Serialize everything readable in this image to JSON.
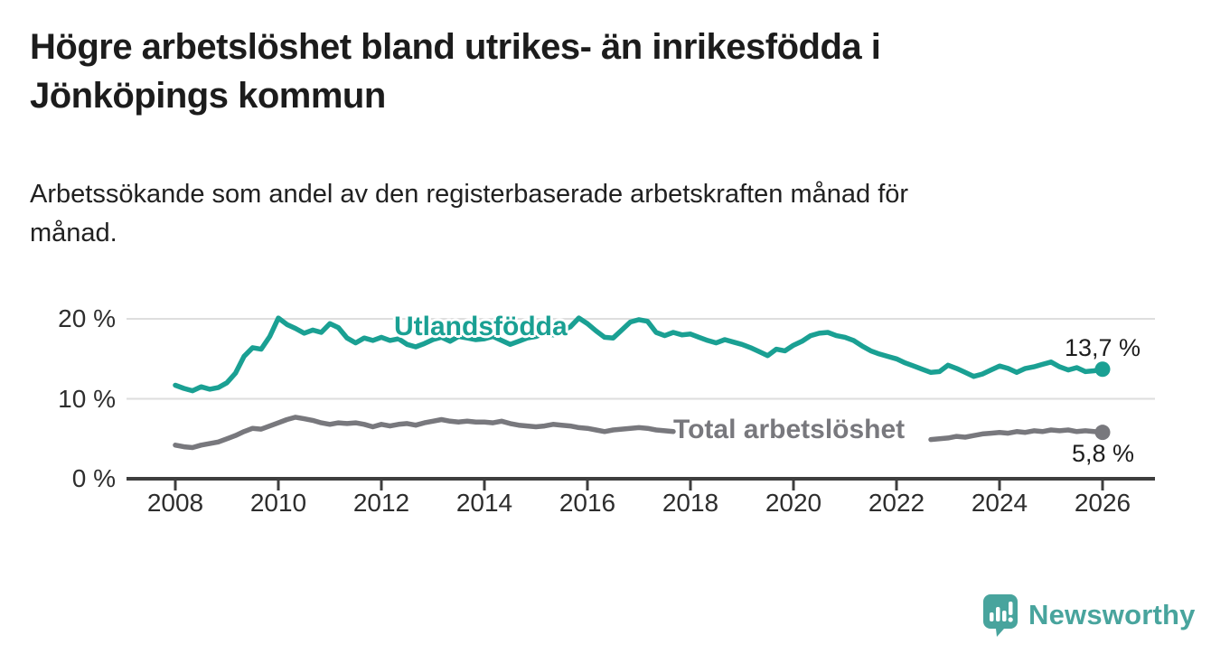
{
  "page": {
    "title_lines": [
      "Högre arbetslöshet bland utrikes- än inrikesfödda i",
      "Jönköpings kommun"
    ],
    "subtitle_lines": [
      "Arbetssökande som andel av den registerbaserade arbetskraften månad för",
      "månad."
    ]
  },
  "chart_data": {
    "type": "line",
    "title": "Högre arbetslöshet bland utrikes- än inrikesfödda i Jönköpings kommun",
    "subtitle": "Arbetssökande som andel av den registerbaserade arbetskraften månad för månad.",
    "x_axis": {
      "start_year": 2008,
      "step_months": 2,
      "tick_labels": [
        "2008",
        "2010",
        "2012",
        "2014",
        "2016",
        "2018",
        "2020",
        "2022",
        "2024",
        "2026"
      ],
      "tick_years": [
        2008,
        2010,
        2012,
        2014,
        2016,
        2018,
        2020,
        2022,
        2024,
        2026
      ]
    },
    "y_axis": {
      "unit": "%",
      "min": 0,
      "max": 22.5,
      "tick_labels": [
        "0 %",
        "10 %",
        "20 %"
      ],
      "tick_values": [
        0,
        10,
        20
      ],
      "gridlines": [
        10,
        20
      ],
      "grid_color": "#dedede",
      "axis_color": "#3e3e3e"
    },
    "series": [
      {
        "name": "Utlandsfödda",
        "color": "#1aa093",
        "end_value": 13.7,
        "end_value_label": "13,7 %",
        "values": [
          11.7,
          11.3,
          11.0,
          11.5,
          11.2,
          11.4,
          12.0,
          13.2,
          15.3,
          16.4,
          16.2,
          17.8,
          20.1,
          19.3,
          18.8,
          18.2,
          18.6,
          18.3,
          19.4,
          18.9,
          17.6,
          17.0,
          17.6,
          17.3,
          17.7,
          17.3,
          17.5,
          16.8,
          16.5,
          16.9,
          17.4,
          17.7,
          17.2,
          17.8,
          17.6,
          17.4,
          17.5,
          17.8,
          17.3,
          16.8,
          17.2,
          17.6,
          17.8,
          18.2,
          18.0,
          18.5,
          19.0,
          20.1,
          19.4,
          18.5,
          17.7,
          17.6,
          18.6,
          19.6,
          19.9,
          19.7,
          18.3,
          17.9,
          18.3,
          18.0,
          18.1,
          17.7,
          17.3,
          17.0,
          17.4,
          17.1,
          16.8,
          16.4,
          15.9,
          15.4,
          16.2,
          16.0,
          16.7,
          17.2,
          17.9,
          18.2,
          18.3,
          17.9,
          17.7,
          17.3,
          16.6,
          16.0,
          15.6,
          15.3,
          15.0,
          14.5,
          14.1,
          13.7,
          13.3,
          13.4,
          14.2,
          13.8,
          13.3,
          12.8,
          13.1,
          13.6,
          14.1,
          13.8,
          13.3,
          13.8,
          14.0,
          14.3,
          14.6,
          14.0,
          13.6,
          13.9,
          13.4,
          13.5,
          13.7
        ]
      },
      {
        "name": "Total arbetslöshet",
        "color": "#78787d",
        "end_value": 5.8,
        "end_value_label": "5,8 %",
        "gap_years": [
          2017.72,
          2022.58
        ],
        "values": [
          4.2,
          4.0,
          3.9,
          4.2,
          4.4,
          4.6,
          5.0,
          5.4,
          5.9,
          6.3,
          6.2,
          6.6,
          7.0,
          7.4,
          7.7,
          7.5,
          7.3,
          7.0,
          6.8,
          7.0,
          6.9,
          7.0,
          6.8,
          6.5,
          6.8,
          6.6,
          6.8,
          6.9,
          6.7,
          7.0,
          7.2,
          7.4,
          7.2,
          7.1,
          7.2,
          7.1,
          7.1,
          7.0,
          7.2,
          6.9,
          6.7,
          6.6,
          6.5,
          6.6,
          6.8,
          6.7,
          6.6,
          6.4,
          6.3,
          6.1,
          5.9,
          6.1,
          6.2,
          6.3,
          6.4,
          6.3,
          6.1,
          6.0,
          5.9,
          5.8,
          5.7,
          5.6,
          5.5,
          5.4,
          5.5,
          5.4,
          5.3,
          5.3,
          5.2,
          5.1,
          5.2,
          5.1,
          5.3,
          5.6,
          6.0,
          6.2,
          6.1,
          6.0,
          5.9,
          5.7,
          5.5,
          5.3,
          5.2,
          5.1,
          5.1,
          5.0,
          4.9,
          5.0,
          4.9,
          5.0,
          5.1,
          5.3,
          5.2,
          5.4,
          5.6,
          5.7,
          5.8,
          5.7,
          5.9,
          5.8,
          6.0,
          5.9,
          6.1,
          6.0,
          6.1,
          5.9,
          6.0,
          5.9,
          5.8
        ]
      }
    ],
    "legend_position": "inline-labels"
  },
  "branding": {
    "logo_text": "Newsworthy",
    "logo_color": "#48a49d"
  }
}
